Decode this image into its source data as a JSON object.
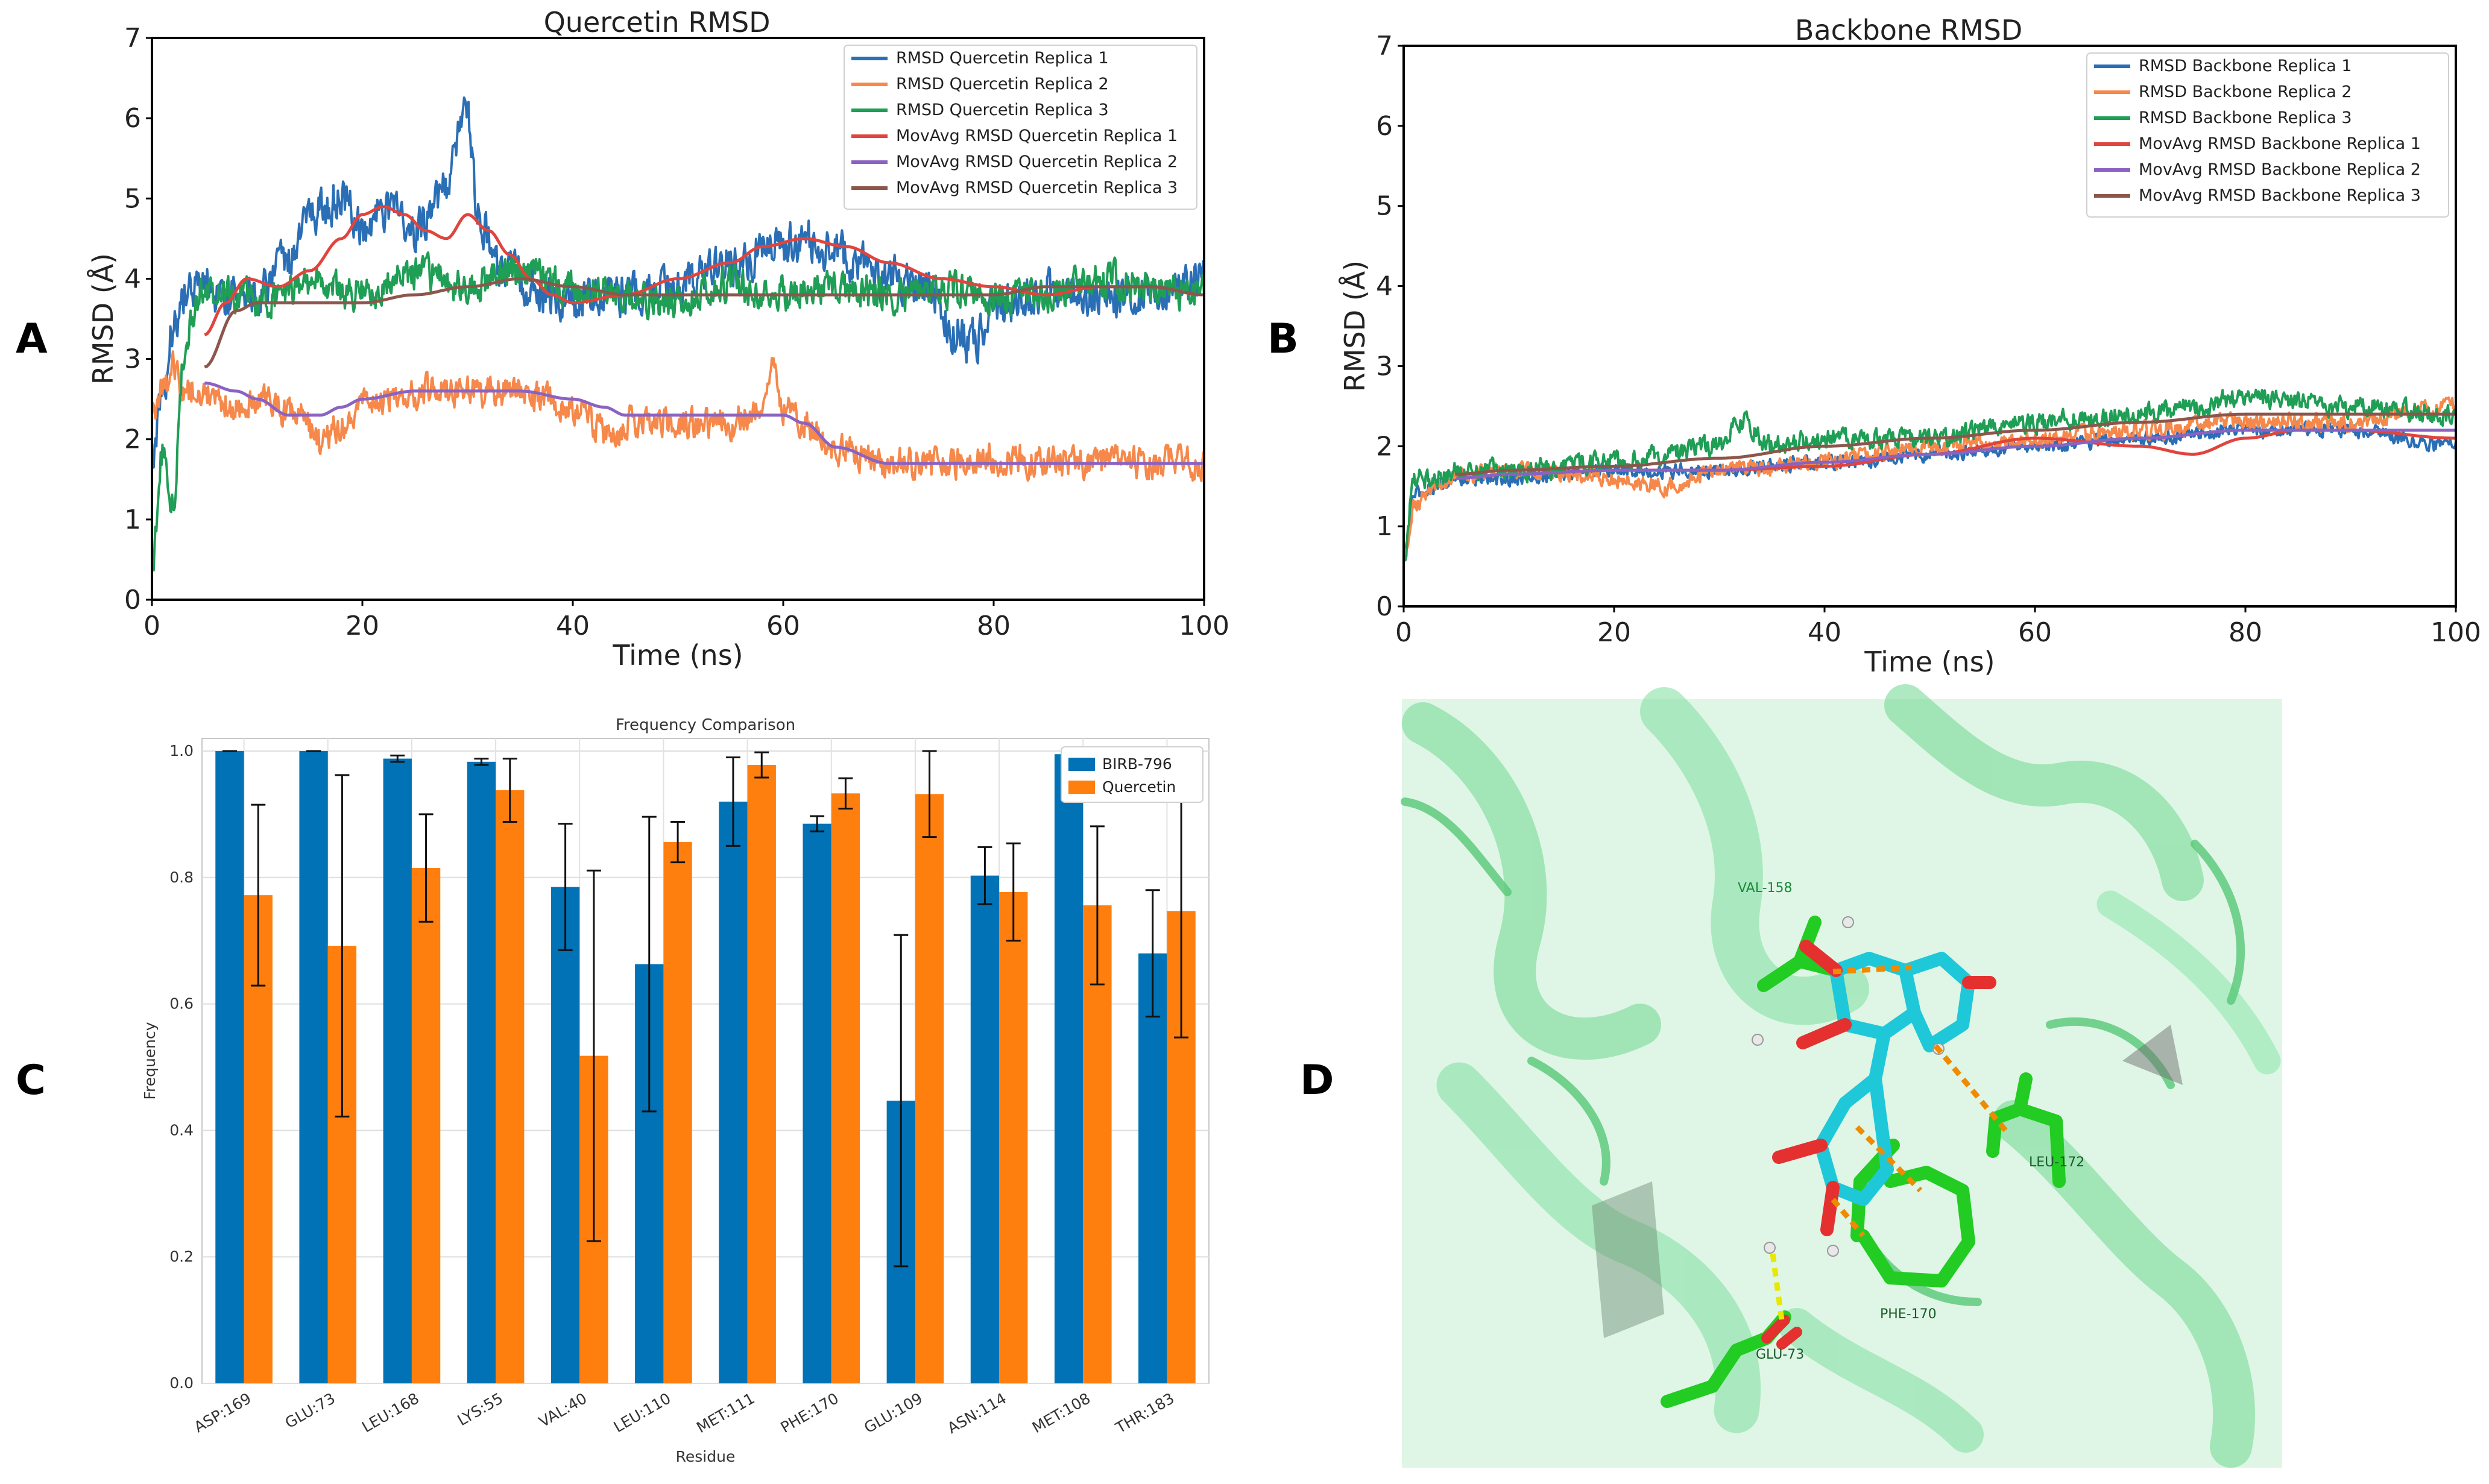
{
  "panel_labels": {
    "a": "A",
    "b": "B",
    "c": "C",
    "d": "D"
  },
  "colors": {
    "blue": "#2a6fb5",
    "orange": "#f5884a",
    "green": "#1f9e55",
    "red": "#e0443e",
    "purple": "#8a63c2",
    "brown": "#8c564b",
    "birb": "#0072b5",
    "quercetin": "#ff7f0e",
    "protein": "#7fe0a0",
    "ligand": "#1ec8d8",
    "residue": "#22cc22",
    "oxygen": "#e53030"
  },
  "chart_data": [
    {
      "id": "A",
      "type": "line",
      "title": "Quercetin  RMSD",
      "xlabel": "Time (ns)",
      "ylabel": "RMSD (Å)",
      "xlim": [
        0,
        100
      ],
      "ylim": [
        0,
        7
      ],
      "xticks": [
        "0",
        "20",
        "40",
        "60",
        "80",
        "100"
      ],
      "yticks": [
        "0",
        "1",
        "2",
        "3",
        "4",
        "5",
        "6",
        "7"
      ],
      "legend_position": "upper-right",
      "series": [
        {
          "name": "RMSD Quercetin Replica 1",
          "style": "noisy",
          "color": "blue",
          "noise": 0.3,
          "x": [
            0,
            1,
            2,
            3,
            5,
            7,
            10,
            13,
            15,
            18,
            20,
            22,
            25,
            28,
            29,
            30,
            31,
            33,
            36,
            40,
            45,
            50,
            55,
            60,
            62,
            65,
            70,
            74,
            76,
            78,
            80,
            85,
            90,
            95,
            100
          ],
          "y": [
            1.8,
            2.6,
            3.4,
            3.8,
            3.9,
            3.8,
            3.8,
            4.2,
            4.8,
            5.0,
            4.6,
            4.9,
            4.6,
            5.1,
            5.8,
            6.0,
            4.8,
            4.1,
            3.9,
            3.7,
            3.8,
            3.9,
            4.2,
            4.4,
            4.5,
            4.3,
            4.0,
            3.8,
            3.4,
            3.2,
            3.6,
            3.9,
            3.8,
            3.8,
            4.0
          ]
        },
        {
          "name": "RMSD Quercetin Replica 2",
          "style": "noisy",
          "color": "orange",
          "noise": 0.22,
          "x": [
            0,
            1,
            2,
            3,
            5,
            8,
            10,
            14,
            16,
            18,
            20,
            25,
            30,
            35,
            40,
            44,
            45,
            50,
            55,
            58,
            59,
            60,
            62,
            65,
            70,
            75,
            80,
            90,
            100
          ],
          "y": [
            2.3,
            2.6,
            2.9,
            2.6,
            2.6,
            2.4,
            2.5,
            2.3,
            1.9,
            2.2,
            2.4,
            2.6,
            2.6,
            2.6,
            2.4,
            2.0,
            2.2,
            2.2,
            2.2,
            2.4,
            2.9,
            2.4,
            2.2,
            1.9,
            1.7,
            1.7,
            1.75,
            1.7,
            1.7
          ]
        },
        {
          "name": "RMSD Quercetin Replica 3",
          "style": "noisy",
          "color": "green",
          "noise": 0.25,
          "x": [
            0,
            1,
            2,
            3,
            4,
            5,
            6,
            8,
            10,
            15,
            20,
            25,
            30,
            35,
            40,
            45,
            50,
            55,
            60,
            65,
            70,
            75,
            80,
            85,
            90,
            95,
            100
          ],
          "y": [
            0.4,
            1.8,
            1.2,
            3.0,
            3.6,
            3.9,
            3.8,
            3.8,
            3.7,
            3.9,
            3.8,
            4.1,
            3.9,
            4.1,
            3.9,
            3.8,
            3.7,
            3.9,
            3.8,
            3.9,
            3.8,
            3.9,
            3.8,
            3.8,
            4.0,
            3.9,
            3.8
          ]
        },
        {
          "name": "MovAvg RMSD Quercetin Replica 1",
          "style": "smooth",
          "color": "red",
          "x": [
            5,
            7,
            9,
            12,
            15,
            18,
            20,
            22,
            24,
            26,
            28,
            30,
            32,
            34,
            36,
            38,
            40,
            45,
            50,
            55,
            58,
            62,
            66,
            70,
            75,
            80,
            85,
            90,
            95,
            100
          ],
          "y": [
            3.3,
            3.7,
            4.0,
            3.9,
            4.1,
            4.5,
            4.8,
            4.9,
            4.8,
            4.6,
            4.5,
            4.8,
            4.6,
            4.3,
            4.0,
            3.8,
            3.7,
            3.8,
            4.0,
            4.2,
            4.4,
            4.5,
            4.4,
            4.2,
            4.0,
            3.9,
            3.8,
            3.9,
            3.9,
            3.8
          ]
        },
        {
          "name": "MovAvg RMSD Quercetin Replica 2",
          "style": "smooth",
          "color": "purple",
          "x": [
            5,
            8,
            10,
            13,
            16,
            18,
            20,
            25,
            30,
            35,
            40,
            43,
            45,
            50,
            55,
            58,
            60,
            62,
            65,
            70,
            75,
            80,
            85,
            90,
            95,
            100
          ],
          "y": [
            2.7,
            2.6,
            2.5,
            2.3,
            2.3,
            2.4,
            2.5,
            2.6,
            2.6,
            2.6,
            2.5,
            2.4,
            2.3,
            2.3,
            2.3,
            2.3,
            2.3,
            2.2,
            1.9,
            1.7,
            1.7,
            1.7,
            1.7,
            1.7,
            1.7,
            1.7
          ]
        },
        {
          "name": "MovAvg RMSD Quercetin Replica 3",
          "style": "smooth",
          "color": "brown",
          "x": [
            5,
            8,
            10,
            15,
            20,
            25,
            30,
            35,
            40,
            45,
            50,
            55,
            60,
            65,
            70,
            75,
            80,
            85,
            90,
            95,
            100
          ],
          "y": [
            2.9,
            3.6,
            3.7,
            3.7,
            3.7,
            3.8,
            3.9,
            4.0,
            3.9,
            3.8,
            3.8,
            3.8,
            3.8,
            3.8,
            3.8,
            3.8,
            3.8,
            3.9,
            3.9,
            3.9,
            3.8
          ]
        }
      ]
    },
    {
      "id": "B",
      "type": "line",
      "title": "Backbone RMSD",
      "xlabel": "Time (ns)",
      "ylabel": "RMSD (Å)",
      "xlim": [
        0,
        100
      ],
      "ylim": [
        0,
        7
      ],
      "xticks": [
        "0",
        "20",
        "40",
        "60",
        "80",
        "100"
      ],
      "yticks": [
        "0",
        "1",
        "2",
        "3",
        "4",
        "5",
        "6",
        "7"
      ],
      "legend_position": "upper-right",
      "series": [
        {
          "name": "RMSD Backbone Replica 1",
          "style": "noisy",
          "color": "blue",
          "noise": 0.1,
          "x": [
            0,
            1,
            3,
            5,
            10,
            20,
            30,
            40,
            50,
            60,
            70,
            80,
            90,
            100
          ],
          "y": [
            0.6,
            1.4,
            1.5,
            1.6,
            1.6,
            1.7,
            1.7,
            1.8,
            1.9,
            2.0,
            2.1,
            2.2,
            2.2,
            2.0
          ]
        },
        {
          "name": "RMSD Backbone Replica 2",
          "style": "noisy",
          "color": "orange",
          "noise": 0.12,
          "x": [
            0,
            1,
            3,
            5,
            10,
            20,
            25,
            30,
            40,
            50,
            60,
            70,
            80,
            90,
            100
          ],
          "y": [
            0.6,
            1.3,
            1.5,
            1.6,
            1.7,
            1.6,
            1.5,
            1.7,
            1.8,
            2.0,
            2.1,
            2.2,
            2.3,
            2.3,
            2.5
          ]
        },
        {
          "name": "RMSD Backbone Replica 3",
          "style": "noisy",
          "color": "green",
          "noise": 0.14,
          "x": [
            0,
            1,
            3,
            5,
            10,
            20,
            30,
            32,
            35,
            40,
            50,
            60,
            70,
            75,
            80,
            90,
            100
          ],
          "y": [
            0.6,
            1.6,
            1.6,
            1.7,
            1.7,
            1.8,
            2.0,
            2.3,
            2.0,
            2.1,
            2.1,
            2.3,
            2.4,
            2.5,
            2.6,
            2.5,
            2.4
          ]
        },
        {
          "name": "MovAvg RMSD Backbone Replica 1",
          "style": "smooth",
          "color": "red",
          "x": [
            5,
            10,
            20,
            30,
            40,
            50,
            60,
            70,
            75,
            80,
            85,
            90,
            100
          ],
          "y": [
            1.6,
            1.65,
            1.7,
            1.7,
            1.75,
            1.9,
            2.1,
            2.0,
            1.9,
            2.1,
            2.2,
            2.2,
            2.1
          ]
        },
        {
          "name": "MovAvg RMSD Backbone Replica 2",
          "style": "smooth",
          "color": "purple",
          "x": [
            5,
            10,
            20,
            30,
            40,
            50,
            60,
            70,
            80,
            90,
            100
          ],
          "y": [
            1.6,
            1.65,
            1.7,
            1.7,
            1.8,
            1.9,
            2.0,
            2.1,
            2.2,
            2.2,
            2.2
          ]
        },
        {
          "name": "MovAvg RMSD Backbone Replica 3",
          "style": "smooth",
          "color": "brown",
          "x": [
            5,
            10,
            20,
            30,
            40,
            50,
            60,
            70,
            80,
            90,
            100
          ],
          "y": [
            1.65,
            1.7,
            1.75,
            1.85,
            2.0,
            2.1,
            2.2,
            2.3,
            2.4,
            2.4,
            2.4
          ]
        }
      ]
    },
    {
      "id": "C",
      "type": "bar",
      "title": "Frequency Comparison",
      "xlabel": "Residue",
      "ylabel": "Frequency",
      "ylim": [
        0,
        1.02
      ],
      "yticks": [
        "0.0",
        "0.2",
        "0.4",
        "0.6",
        "0.8",
        "1.0"
      ],
      "legend_position": "upper-right",
      "categories": [
        "ASP:169",
        "GLU:73",
        "LEU:168",
        "LYS:55",
        "VAL:40",
        "LEU:110",
        "MET:111",
        "PHE:170",
        "GLU:109",
        "ASN:114",
        "MET:108",
        "THR:183"
      ],
      "series": [
        {
          "name": "BIRB-796",
          "color": "birb",
          "values": [
            1.0,
            1.0,
            0.988,
            0.983,
            0.785,
            0.663,
            0.92,
            0.885,
            0.447,
            0.803,
            0.995,
            0.68
          ],
          "err": [
            0.0,
            0.0,
            0.005,
            0.005,
            0.1,
            0.233,
            0.07,
            0.012,
            0.262,
            0.045,
            0.005,
            0.1
          ]
        },
        {
          "name": "Quercetin",
          "color": "quercetin",
          "values": [
            0.772,
            0.692,
            0.815,
            0.938,
            0.518,
            0.856,
            0.978,
            0.933,
            0.932,
            0.777,
            0.756,
            0.747
          ],
          "err": [
            0.143,
            0.27,
            0.085,
            0.05,
            0.293,
            0.032,
            0.02,
            0.024,
            0.068,
            0.077,
            0.125,
            0.2
          ]
        }
      ]
    }
  ],
  "panel_d": {
    "residue_labels": {
      "val158": "VAL-158",
      "leu172": "LEU-172",
      "phe170": "PHE-170",
      "glu73": "GLU-73"
    }
  }
}
